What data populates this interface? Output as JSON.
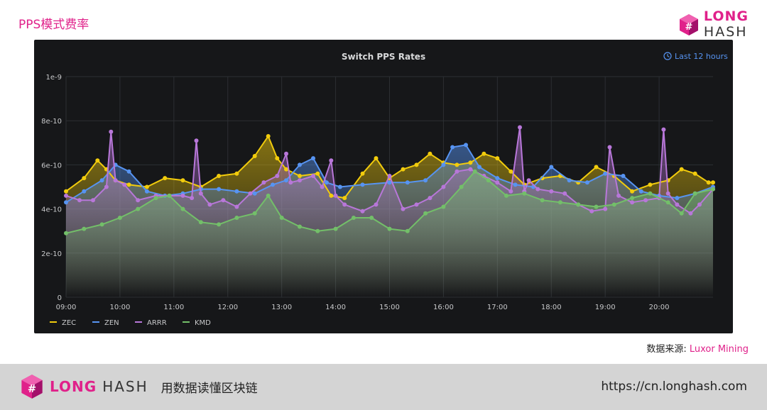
{
  "header": {
    "title": "PPS模式费率",
    "brand_word1": "LONG",
    "brand_word2": "HASH"
  },
  "panel": {
    "time_range": "Last 12 hours"
  },
  "chart_data": {
    "type": "area",
    "title": "Switch PPS Rates",
    "xlabel": "",
    "ylabel": "",
    "x_start": "09:00",
    "x_end": "21:00",
    "x_ticks": [
      "09:00",
      "10:00",
      "11:00",
      "12:00",
      "13:00",
      "14:00",
      "15:00",
      "16:00",
      "17:00",
      "18:00",
      "19:00",
      "20:00"
    ],
    "y_ticks": [
      "0",
      "2e-10",
      "4e-10",
      "6e-10",
      "8e-10",
      "1e-9"
    ],
    "ylim": [
      0,
      1e-09
    ],
    "grid": true,
    "legend_position": "bottom-left",
    "series": [
      {
        "name": "ZEC",
        "color": "#f2cc0c",
        "x": [
          "09:00",
          "09:20",
          "09:35",
          "09:45",
          "09:55",
          "10:10",
          "10:30",
          "10:50",
          "11:10",
          "11:30",
          "11:50",
          "12:10",
          "12:30",
          "12:45",
          "12:55",
          "13:05",
          "13:20",
          "13:40",
          "13:55",
          "14:10",
          "14:30",
          "14:45",
          "15:00",
          "15:15",
          "15:30",
          "15:45",
          "16:00",
          "16:15",
          "16:30",
          "16:45",
          "17:00",
          "17:15",
          "17:30",
          "17:50",
          "18:10",
          "18:30",
          "18:50",
          "19:10",
          "19:30",
          "19:50",
          "20:10",
          "20:25",
          "20:40",
          "20:55",
          "21:00"
        ],
        "values": [
          4.8e-10,
          5.4e-10,
          6.2e-10,
          5.8e-10,
          5.3e-10,
          5.1e-10,
          5e-10,
          5.4e-10,
          5.3e-10,
          5e-10,
          5.5e-10,
          5.6e-10,
          6.4e-10,
          7.3e-10,
          6.3e-10,
          5.8e-10,
          5.5e-10,
          5.6e-10,
          4.6e-10,
          4.5e-10,
          5.6e-10,
          6.3e-10,
          5.4e-10,
          5.8e-10,
          6e-10,
          6.5e-10,
          6.1e-10,
          6e-10,
          6.1e-10,
          6.5e-10,
          6.3e-10,
          5.7e-10,
          5.1e-10,
          5.4e-10,
          5.5e-10,
          5.2e-10,
          5.9e-10,
          5.5e-10,
          4.8e-10,
          5.1e-10,
          5.3e-10,
          5.8e-10,
          5.6e-10,
          5.2e-10,
          5.2e-10
        ]
      },
      {
        "name": "ZEN",
        "color": "#5794f2",
        "x": [
          "09:00",
          "09:20",
          "09:40",
          "09:55",
          "10:10",
          "10:30",
          "10:50",
          "11:10",
          "11:30",
          "11:50",
          "12:10",
          "12:30",
          "12:50",
          "13:05",
          "13:20",
          "13:35",
          "13:50",
          "14:05",
          "14:30",
          "15:00",
          "15:20",
          "15:40",
          "16:00",
          "16:10",
          "16:25",
          "16:40",
          "17:00",
          "17:20",
          "17:40",
          "18:00",
          "18:20",
          "18:40",
          "19:00",
          "19:20",
          "19:40",
          "20:00",
          "20:20",
          "20:40",
          "21:00"
        ],
        "values": [
          4.3e-10,
          4.8e-10,
          5.3e-10,
          6e-10,
          5.7e-10,
          4.8e-10,
          4.6e-10,
          4.7e-10,
          4.9e-10,
          4.9e-10,
          4.8e-10,
          4.7e-10,
          5.1e-10,
          5.3e-10,
          6e-10,
          6.3e-10,
          5.2e-10,
          5e-10,
          5.1e-10,
          5.2e-10,
          5.2e-10,
          5.3e-10,
          6e-10,
          6.8e-10,
          6.9e-10,
          5.9e-10,
          5.4e-10,
          5.1e-10,
          5e-10,
          5.9e-10,
          5.3e-10,
          5.2e-10,
          5.6e-10,
          5.5e-10,
          4.8e-10,
          4.6e-10,
          4.5e-10,
          4.7e-10,
          5e-10
        ]
      },
      {
        "name": "ARRR",
        "color": "#b877d9",
        "x": [
          "09:00",
          "09:15",
          "09:30",
          "09:45",
          "09:50",
          "09:55",
          "10:05",
          "10:20",
          "10:40",
          "10:55",
          "11:10",
          "11:20",
          "11:25",
          "11:30",
          "11:40",
          "11:55",
          "12:10",
          "12:25",
          "12:40",
          "12:55",
          "13:05",
          "13:10",
          "13:20",
          "13:35",
          "13:45",
          "13:55",
          "14:00",
          "14:10",
          "14:30",
          "14:45",
          "15:00",
          "15:15",
          "15:30",
          "15:45",
          "16:00",
          "16:15",
          "16:30",
          "16:45",
          "17:00",
          "17:15",
          "17:25",
          "17:30",
          "17:35",
          "17:45",
          "18:00",
          "18:15",
          "18:30",
          "18:45",
          "19:00",
          "19:05",
          "19:15",
          "19:30",
          "19:45",
          "20:00",
          "20:05",
          "20:10",
          "20:20",
          "20:35",
          "20:45",
          "21:00"
        ],
        "values": [
          4.6e-10,
          4.4e-10,
          4.4e-10,
          5e-10,
          7.5e-10,
          5.3e-10,
          5.1e-10,
          4.4e-10,
          4.6e-10,
          4.6e-10,
          4.6e-10,
          4.5e-10,
          7.1e-10,
          4.7e-10,
          4.2e-10,
          4.4e-10,
          4.1e-10,
          4.7e-10,
          5.2e-10,
          5.5e-10,
          6.5e-10,
          5.2e-10,
          5.3e-10,
          5.5e-10,
          5e-10,
          6.2e-10,
          4.6e-10,
          4.2e-10,
          3.9e-10,
          4.2e-10,
          5.5e-10,
          4e-10,
          4.2e-10,
          4.5e-10,
          5e-10,
          5.7e-10,
          5.8e-10,
          5.5e-10,
          5.2e-10,
          4.8e-10,
          7.7e-10,
          4.8e-10,
          5.3e-10,
          4.9e-10,
          4.8e-10,
          4.7e-10,
          4.2e-10,
          3.9e-10,
          4e-10,
          6.8e-10,
          4.6e-10,
          4.3e-10,
          4.4e-10,
          4.5e-10,
          7.6e-10,
          4.7e-10,
          4.2e-10,
          3.8e-10,
          4.2e-10,
          4.9e-10
        ]
      },
      {
        "name": "KMD",
        "color": "#73bf69",
        "x": [
          "09:00",
          "09:20",
          "09:40",
          "10:00",
          "10:20",
          "10:40",
          "10:55",
          "11:10",
          "11:30",
          "11:50",
          "12:10",
          "12:30",
          "12:45",
          "13:00",
          "13:20",
          "13:40",
          "14:00",
          "14:20",
          "14:40",
          "15:00",
          "15:20",
          "15:40",
          "16:00",
          "16:20",
          "16:35",
          "16:50",
          "17:10",
          "17:30",
          "17:50",
          "18:10",
          "18:30",
          "18:50",
          "19:10",
          "19:30",
          "19:50",
          "20:10",
          "20:25",
          "20:40",
          "21:00"
        ],
        "values": [
          2.9e-10,
          3.1e-10,
          3.3e-10,
          3.6e-10,
          4e-10,
          4.5e-10,
          4.6e-10,
          4e-10,
          3.4e-10,
          3.3e-10,
          3.6e-10,
          3.8e-10,
          4.6e-10,
          3.6e-10,
          3.2e-10,
          3e-10,
          3.1e-10,
          3.6e-10,
          3.6e-10,
          3.1e-10,
          3e-10,
          3.8e-10,
          4.1e-10,
          5e-10,
          5.7e-10,
          5.3e-10,
          4.6e-10,
          4.7e-10,
          4.4e-10,
          4.3e-10,
          4.2e-10,
          4.1e-10,
          4.2e-10,
          4.5e-10,
          4.7e-10,
          4.3e-10,
          3.8e-10,
          4.7e-10,
          4.9e-10
        ]
      }
    ]
  },
  "source": {
    "label": "数据来源:",
    "name": "Luxor Mining"
  },
  "footer": {
    "logo_word1": "LONG",
    "logo_word2": "HASH",
    "slogan": "用数据读懂区块链",
    "url": "https://cn.longhash.com"
  }
}
